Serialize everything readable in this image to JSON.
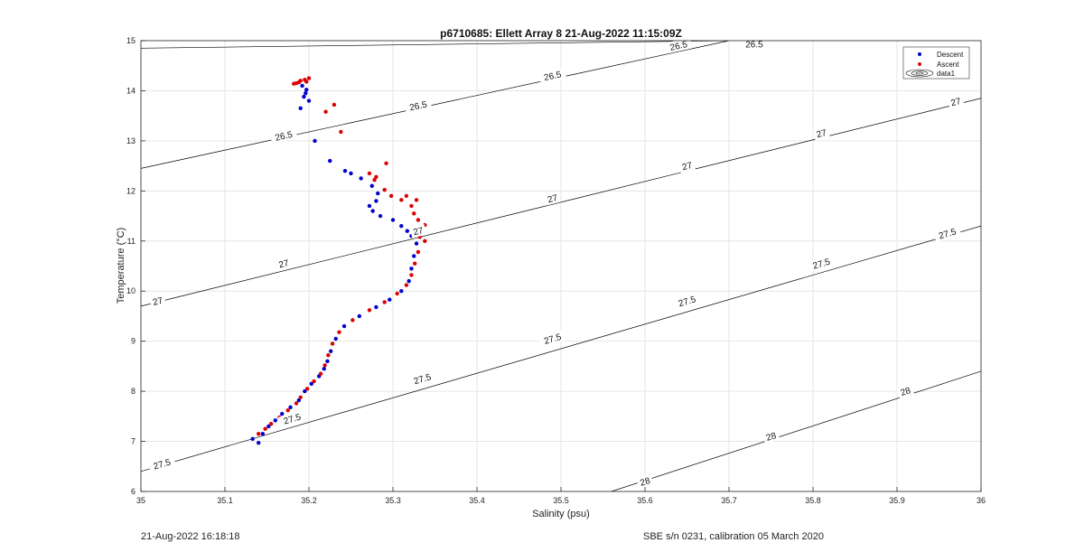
{
  "chart_data": {
    "type": "scatter",
    "title": "p6710685: Ellett Array 8 21-Aug-2022 11:15:09Z",
    "xlabel": "Salinity (psu)",
    "ylabel": "Temperature (°C)",
    "xlim": [
      35,
      36
    ],
    "ylim": [
      6,
      15
    ],
    "xticks": [
      "35",
      "35.1",
      "35.2",
      "35.3",
      "35.4",
      "35.5",
      "35.6",
      "35.7",
      "35.8",
      "35.9",
      "36"
    ],
    "yticks": [
      "6",
      "7",
      "8",
      "9",
      "10",
      "11",
      "12",
      "13",
      "14",
      "15"
    ],
    "grid": true,
    "legend": {
      "placement": "top-right",
      "entries": [
        "Descent",
        "Ascent",
        "data1"
      ]
    },
    "colors": {
      "descent": "#0000cc",
      "ascent": "#dd0000",
      "contour": "#000000",
      "grid": "#e6e6e6"
    },
    "series": [
      {
        "name": "Descent",
        "points": [
          [
            35.133,
            7.05
          ],
          [
            35.14,
            6.97
          ],
          [
            35.145,
            7.15
          ],
          [
            35.152,
            7.3
          ],
          [
            35.16,
            7.42
          ],
          [
            35.168,
            7.55
          ],
          [
            35.178,
            7.68
          ],
          [
            35.188,
            7.82
          ],
          [
            35.195,
            8.0
          ],
          [
            35.203,
            8.15
          ],
          [
            35.212,
            8.3
          ],
          [
            35.218,
            8.45
          ],
          [
            35.222,
            8.6
          ],
          [
            35.226,
            8.8
          ],
          [
            35.232,
            9.05
          ],
          [
            35.242,
            9.3
          ],
          [
            35.26,
            9.5
          ],
          [
            35.28,
            9.68
          ],
          [
            35.296,
            9.83
          ],
          [
            35.31,
            10.0
          ],
          [
            35.319,
            10.2
          ],
          [
            35.322,
            10.45
          ],
          [
            35.325,
            10.7
          ],
          [
            35.328,
            10.95
          ],
          [
            35.322,
            11.1
          ],
          [
            35.317,
            11.2
          ],
          [
            35.31,
            11.3
          ],
          [
            35.3,
            11.42
          ],
          [
            35.285,
            11.5
          ],
          [
            35.276,
            11.6
          ],
          [
            35.272,
            11.7
          ],
          [
            35.28,
            11.8
          ],
          [
            35.282,
            11.95
          ],
          [
            35.275,
            12.1
          ],
          [
            35.262,
            12.25
          ],
          [
            35.25,
            12.35
          ],
          [
            35.243,
            12.4
          ],
          [
            35.225,
            12.6
          ],
          [
            35.207,
            13.0
          ],
          [
            35.2,
            13.8
          ],
          [
            35.196,
            13.95
          ],
          [
            35.197,
            14.02
          ],
          [
            35.192,
            14.1
          ],
          [
            35.194,
            13.88
          ],
          [
            35.19,
            13.65
          ]
        ]
      },
      {
        "name": "Ascent",
        "points": [
          [
            35.14,
            7.15
          ],
          [
            35.148,
            7.25
          ],
          [
            35.155,
            7.35
          ],
          [
            35.165,
            7.48
          ],
          [
            35.175,
            7.62
          ],
          [
            35.185,
            7.76
          ],
          [
            35.19,
            7.88
          ],
          [
            35.198,
            8.05
          ],
          [
            35.206,
            8.2
          ],
          [
            35.214,
            8.35
          ],
          [
            35.219,
            8.52
          ],
          [
            35.223,
            8.72
          ],
          [
            35.228,
            8.95
          ],
          [
            35.236,
            9.18
          ],
          [
            35.252,
            9.42
          ],
          [
            35.272,
            9.62
          ],
          [
            35.29,
            9.78
          ],
          [
            35.305,
            9.95
          ],
          [
            35.316,
            10.12
          ],
          [
            35.322,
            10.32
          ],
          [
            35.326,
            10.55
          ],
          [
            35.33,
            10.78
          ],
          [
            35.338,
            11.0
          ],
          [
            35.332,
            11.08
          ],
          [
            35.336,
            11.22
          ],
          [
            35.338,
            11.32
          ],
          [
            35.33,
            11.42
          ],
          [
            35.325,
            11.55
          ],
          [
            35.322,
            11.7
          ],
          [
            35.328,
            11.82
          ],
          [
            35.316,
            11.9
          ],
          [
            35.31,
            11.82
          ],
          [
            35.298,
            11.9
          ],
          [
            35.29,
            12.02
          ],
          [
            35.278,
            12.22
          ],
          [
            35.272,
            12.35
          ],
          [
            35.28,
            12.28
          ],
          [
            35.292,
            12.55
          ],
          [
            35.238,
            13.18
          ],
          [
            35.23,
            13.72
          ],
          [
            35.22,
            13.58
          ],
          [
            35.2,
            14.25
          ],
          [
            35.197,
            14.18
          ],
          [
            35.19,
            14.2
          ],
          [
            35.185,
            14.15
          ],
          [
            35.182,
            14.14
          ],
          [
            35.195,
            14.22
          ],
          [
            35.188,
            14.17
          ]
        ]
      }
    ],
    "contours": [
      {
        "label": "26.5",
        "points": [
          [
            35.0,
            14.85
          ],
          [
            35.7,
            15.0
          ]
        ],
        "labels_at": [
          [
            35.73,
            14.93
          ]
        ]
      },
      {
        "label": "26.5",
        "points": [
          [
            35.0,
            12.45
          ],
          [
            35.7,
            15.0
          ]
        ],
        "labels_at": [
          [
            35.17,
            13.1
          ],
          [
            35.33,
            13.7
          ],
          [
            35.49,
            14.3
          ],
          [
            35.64,
            14.9
          ]
        ]
      },
      {
        "label": "27",
        "points": [
          [
            35.0,
            9.7
          ],
          [
            36.0,
            13.85
          ]
        ],
        "labels_at": [
          [
            35.02,
            9.8
          ],
          [
            35.17,
            10.55
          ],
          [
            35.33,
            11.2
          ],
          [
            35.49,
            11.85
          ],
          [
            35.65,
            12.5
          ],
          [
            35.81,
            13.15
          ],
          [
            35.97,
            13.78
          ]
        ]
      },
      {
        "label": "27.5",
        "points": [
          [
            35.0,
            6.4
          ],
          [
            36.0,
            11.3
          ]
        ],
        "labels_at": [
          [
            35.025,
            6.55
          ],
          [
            35.18,
            7.45
          ],
          [
            35.335,
            8.25
          ],
          [
            35.49,
            9.05
          ],
          [
            35.65,
            9.8
          ],
          [
            35.81,
            10.55
          ],
          [
            35.96,
            11.15
          ]
        ]
      },
      {
        "label": "28",
        "points": [
          [
            35.56,
            6.0
          ],
          [
            36.0,
            8.4
          ]
        ],
        "labels_at": [
          [
            35.6,
            6.2
          ],
          [
            35.75,
            7.1
          ],
          [
            35.91,
            8.0
          ]
        ]
      }
    ]
  },
  "footer": {
    "left_text": "21-Aug-2022 16:18:18",
    "right_text": "SBE s/n 0231, calibration 05 March 2020"
  }
}
